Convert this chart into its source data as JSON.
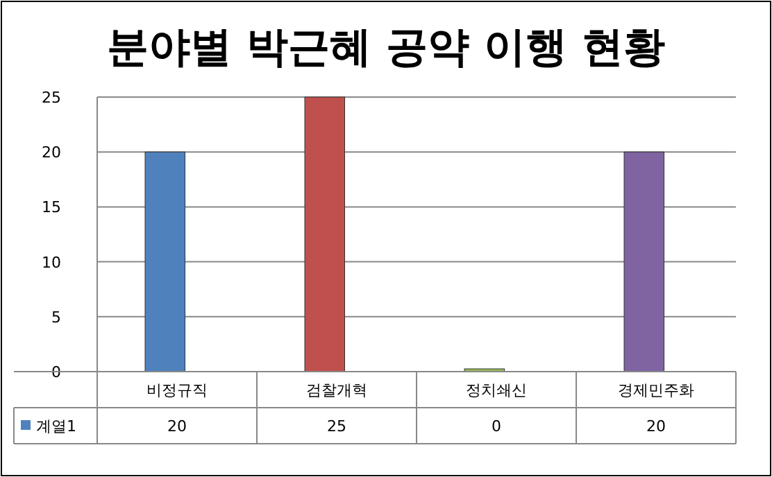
{
  "chart_data": {
    "type": "bar",
    "title": "분야별 박근혜 공약 이행 현황",
    "categories": [
      "비정규직",
      "검찰개혁",
      "정치쇄신",
      "경제민주화"
    ],
    "series": [
      {
        "name": "계열1",
        "color": "#4f81bd",
        "colors": [
          "#4f81bd",
          "#c0504d",
          "#9bbb59",
          "#8064a2"
        ],
        "values": [
          20,
          25,
          0,
          20
        ]
      }
    ],
    "ylim": [
      0,
      25
    ],
    "yticks": [
      0,
      5,
      10,
      15,
      20,
      25
    ],
    "grid": "y",
    "legend": "bottom",
    "data_labels": true
  }
}
